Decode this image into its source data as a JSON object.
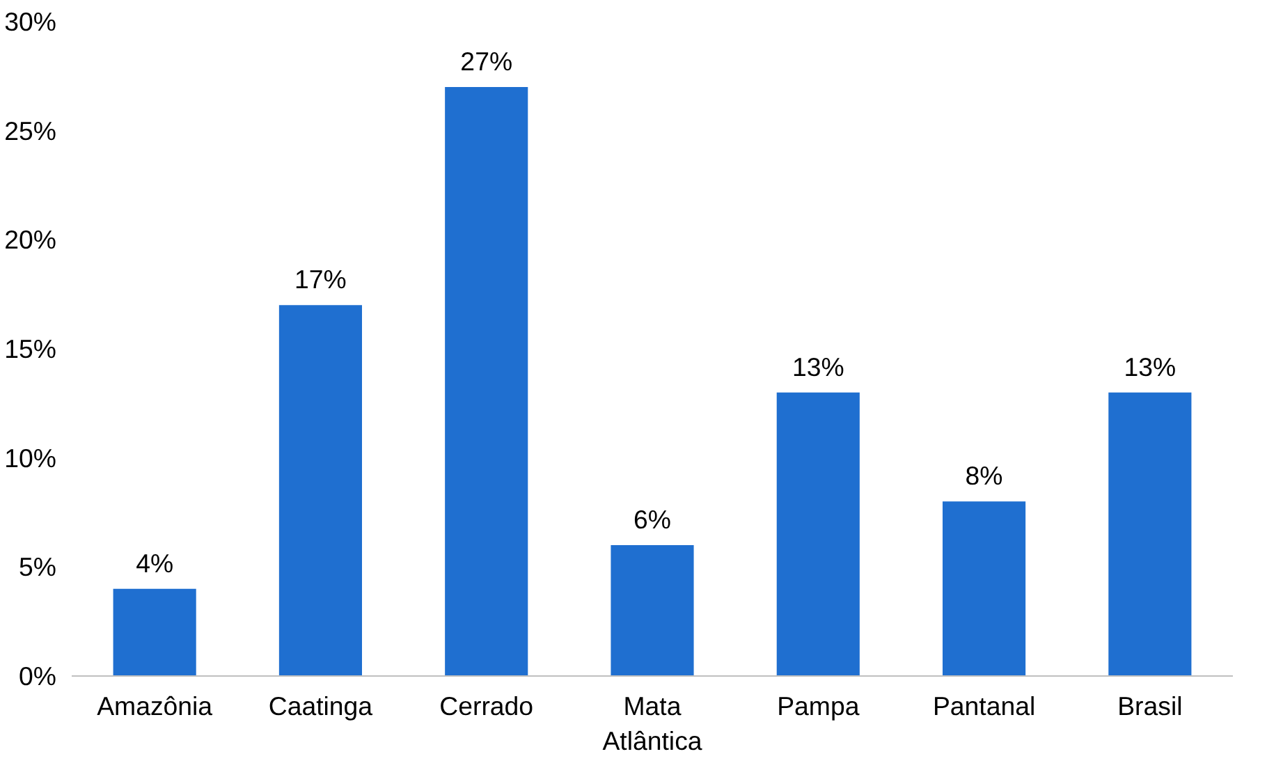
{
  "chart_data": {
    "type": "bar",
    "categories": [
      "Amazônia",
      "Caatinga",
      "Cerrado",
      "Mata Atlântica",
      "Pampa",
      "Pantanal",
      "Brasil"
    ],
    "values": [
      4,
      17,
      27,
      6,
      13,
      8,
      13
    ],
    "value_labels": [
      "4%",
      "17%",
      "27%",
      "6%",
      "13%",
      "8%",
      "13%"
    ],
    "color": "#1f6fd0",
    "ylim": [
      0,
      30
    ],
    "yticks": [
      {
        "value": 0,
        "label": "0%"
      },
      {
        "value": 5,
        "label": "5%"
      },
      {
        "value": 10,
        "label": "10%"
      },
      {
        "value": 15,
        "label": "15%"
      },
      {
        "value": 20,
        "label": "20%"
      },
      {
        "value": 25,
        "label": "25%"
      },
      {
        "value": 30,
        "label": "30%"
      }
    ],
    "grid": false
  }
}
